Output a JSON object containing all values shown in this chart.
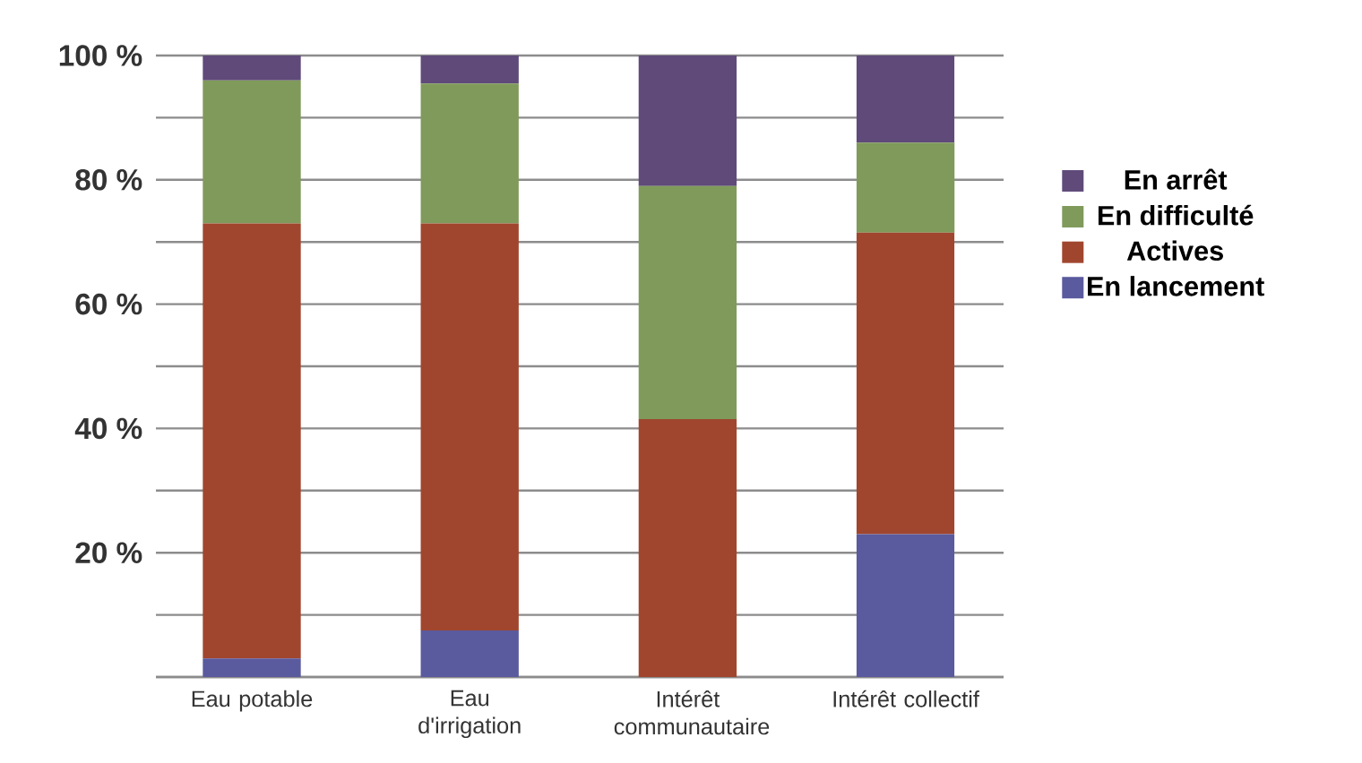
{
  "chart_data": {
    "type": "bar",
    "stacked": true,
    "categories": [
      "Eau potable",
      "Eau d'irrigation",
      "Intérêt communautaire",
      "Intérêt collectif"
    ],
    "series": [
      {
        "name": "En lancement",
        "color": "#5a5a9e",
        "values": [
          3,
          7.5,
          0,
          23
        ]
      },
      {
        "name": "Actives",
        "color": "#a0462e",
        "values": [
          70,
          65.5,
          41.5,
          48.5
        ]
      },
      {
        "name": "En difficulté",
        "color": "#7f9a5a",
        "values": [
          23,
          22.5,
          37.5,
          14.5
        ]
      },
      {
        "name": "En arrêt",
        "color": "#5f4a7a",
        "values": [
          4,
          4.5,
          21,
          14
        ]
      }
    ],
    "ylim": [
      0,
      100
    ],
    "yticks": [
      {
        "value": 0,
        "label": null
      },
      {
        "value": 10,
        "label": null
      },
      {
        "value": 20,
        "label": "20 %"
      },
      {
        "value": 30,
        "label": null
      },
      {
        "value": 40,
        "label": "40 %"
      },
      {
        "value": 50,
        "label": null
      },
      {
        "value": 60,
        "label": "60 %"
      },
      {
        "value": 70,
        "label": null
      },
      {
        "value": 80,
        "label": "80 %"
      },
      {
        "value": 90,
        "label": null
      },
      {
        "value": 100,
        "label": "100 %"
      }
    ],
    "grid": "y",
    "legend": "right"
  }
}
